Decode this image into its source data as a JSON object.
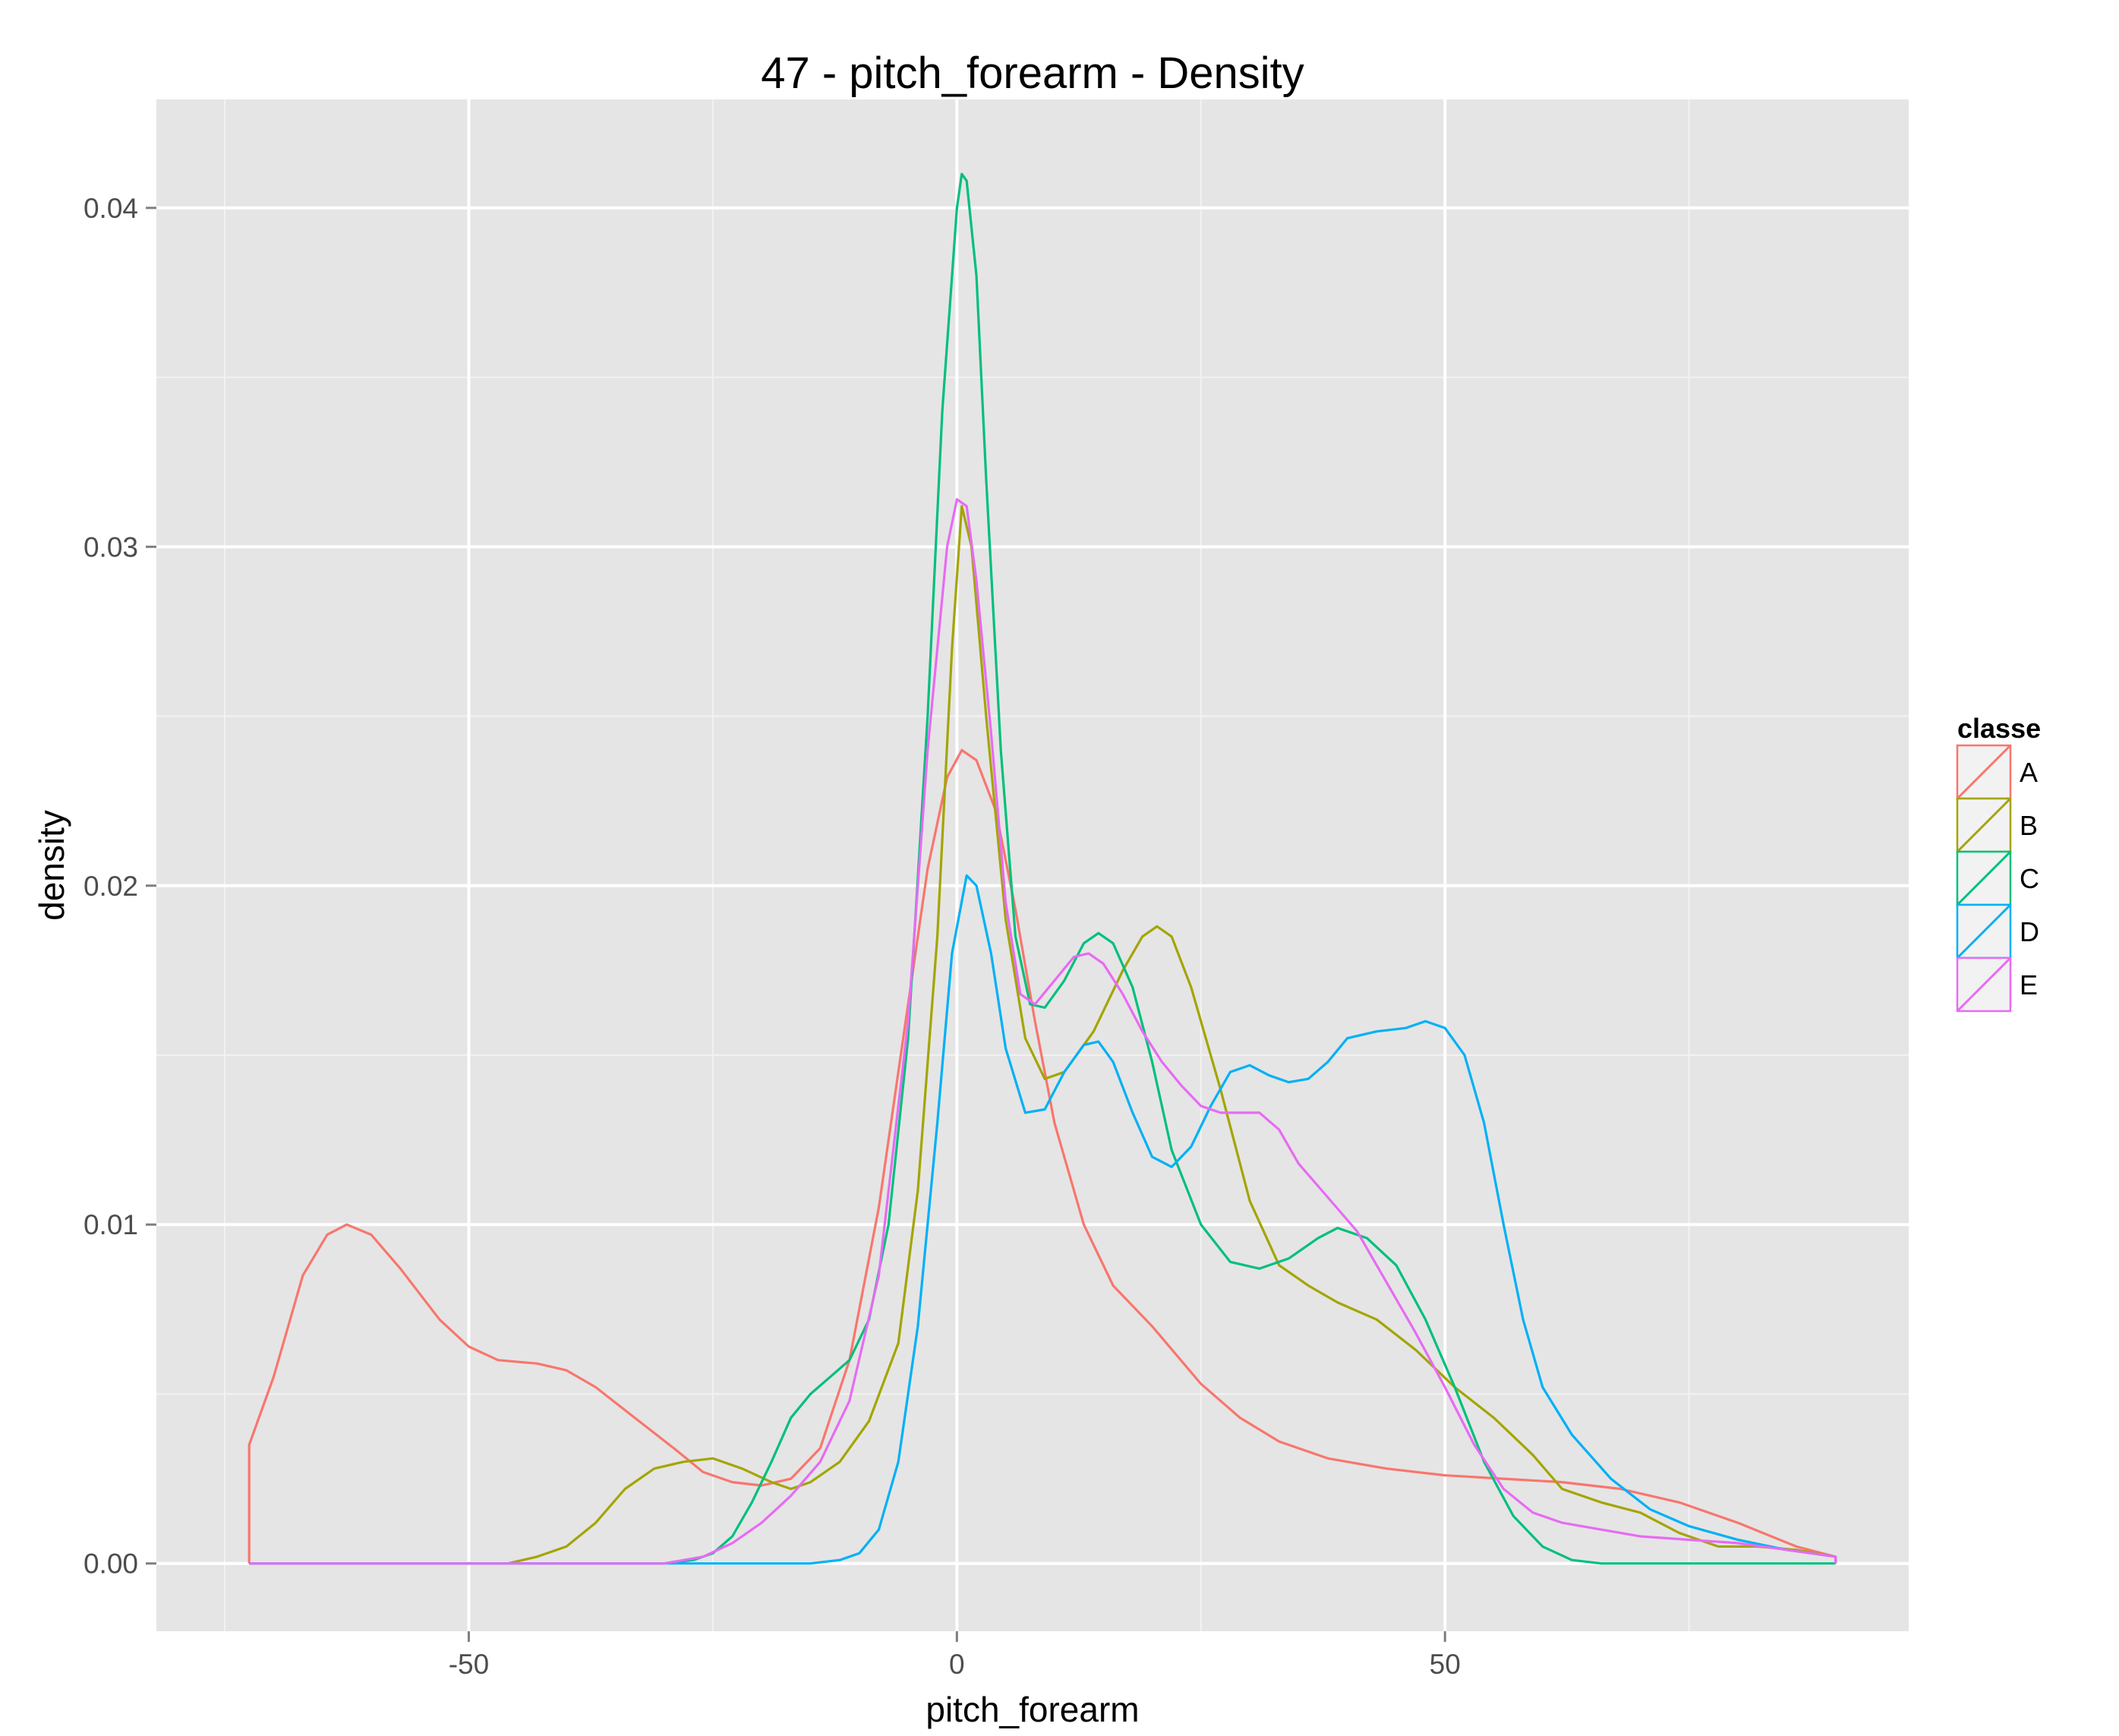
{
  "chart_data": {
    "type": "line",
    "title": "47 - pitch_forearm - Density",
    "xlabel": "pitch_forearm",
    "ylabel": "density",
    "xlim": [
      -82,
      97.5
    ],
    "ylim": [
      -0.002,
      0.0432
    ],
    "x_ticks": [
      -50,
      0,
      50
    ],
    "x_tick_labels": [
      "-50",
      "0",
      "50"
    ],
    "y_ticks": [
      0.0,
      0.01,
      0.02,
      0.03,
      0.04
    ],
    "y_tick_labels": [
      "0.00",
      "0.01",
      "0.02",
      "0.03",
      "0.04"
    ],
    "grid": true,
    "legend": {
      "title": "classe",
      "position": "right"
    },
    "series": [
      {
        "name": "A",
        "color": "#F8766D",
        "points": [
          [
            -72.5,
            0
          ],
          [
            -72.5,
            0.0035
          ],
          [
            -70,
            0.0055
          ],
          [
            -67,
            0.0085
          ],
          [
            -64.5,
            0.0097
          ],
          [
            -62.5,
            0.01
          ],
          [
            -60,
            0.0097
          ],
          [
            -57,
            0.0087
          ],
          [
            -53,
            0.0072
          ],
          [
            -50,
            0.0064
          ],
          [
            -47,
            0.006
          ],
          [
            -43,
            0.0059
          ],
          [
            -40,
            0.0057
          ],
          [
            -37,
            0.0052
          ],
          [
            -33,
            0.0043
          ],
          [
            -29,
            0.0034
          ],
          [
            -26,
            0.0027
          ],
          [
            -23,
            0.0024
          ],
          [
            -20,
            0.0023
          ],
          [
            -17,
            0.0025
          ],
          [
            -14,
            0.0034
          ],
          [
            -11,
            0.006
          ],
          [
            -8,
            0.0105
          ],
          [
            -5,
            0.0165
          ],
          [
            -3,
            0.0205
          ],
          [
            -1,
            0.0232
          ],
          [
            0.5,
            0.024
          ],
          [
            2,
            0.0237
          ],
          [
            4,
            0.0222
          ],
          [
            6,
            0.0193
          ],
          [
            8,
            0.016
          ],
          [
            10,
            0.013
          ],
          [
            13,
            0.01
          ],
          [
            16,
            0.0082
          ],
          [
            20,
            0.007
          ],
          [
            25,
            0.0053
          ],
          [
            29,
            0.0043
          ],
          [
            33,
            0.0036
          ],
          [
            38,
            0.0031
          ],
          [
            44,
            0.0028
          ],
          [
            50,
            0.0026
          ],
          [
            56,
            0.0025
          ],
          [
            62,
            0.0024
          ],
          [
            68,
            0.0022
          ],
          [
            74,
            0.0018
          ],
          [
            80,
            0.0012
          ],
          [
            86,
            0.0005
          ],
          [
            90,
            0.0002
          ],
          [
            90,
            0
          ]
        ]
      },
      {
        "name": "B",
        "color": "#A3A500",
        "points": [
          [
            -72.5,
            0
          ],
          [
            -46,
            0
          ],
          [
            -43,
            0.0002
          ],
          [
            -40,
            0.0005
          ],
          [
            -37,
            0.0012
          ],
          [
            -34,
            0.0022
          ],
          [
            -31,
            0.0028
          ],
          [
            -28,
            0.003
          ],
          [
            -25,
            0.0031
          ],
          [
            -22,
            0.0028
          ],
          [
            -19,
            0.0024
          ],
          [
            -17,
            0.0022
          ],
          [
            -15,
            0.0024
          ],
          [
            -12,
            0.003
          ],
          [
            -9,
            0.0042
          ],
          [
            -6,
            0.0065
          ],
          [
            -4,
            0.011
          ],
          [
            -2,
            0.0185
          ],
          [
            -0.5,
            0.027
          ],
          [
            0.5,
            0.0312
          ],
          [
            1.5,
            0.03
          ],
          [
            3,
            0.025
          ],
          [
            5,
            0.019
          ],
          [
            7,
            0.0155
          ],
          [
            9,
            0.0143
          ],
          [
            11,
            0.0145
          ],
          [
            14,
            0.0157
          ],
          [
            17,
            0.0175
          ],
          [
            19,
            0.0185
          ],
          [
            20.5,
            0.0188
          ],
          [
            22,
            0.0185
          ],
          [
            24,
            0.017
          ],
          [
            27,
            0.014
          ],
          [
            30,
            0.0107
          ],
          [
            33,
            0.0088
          ],
          [
            36,
            0.0082
          ],
          [
            39,
            0.0077
          ],
          [
            43,
            0.0072
          ],
          [
            47,
            0.0063
          ],
          [
            51,
            0.0052
          ],
          [
            55,
            0.0043
          ],
          [
            59,
            0.0032
          ],
          [
            62,
            0.0022
          ],
          [
            66,
            0.0018
          ],
          [
            70,
            0.0015
          ],
          [
            74,
            0.0009
          ],
          [
            78,
            0.0005
          ],
          [
            82,
            0.0005
          ],
          [
            86,
            0.0004
          ],
          [
            90,
            0.0002
          ],
          [
            90,
            0
          ]
        ]
      },
      {
        "name": "C",
        "color": "#00BF7D",
        "points": [
          [
            -72.5,
            0
          ],
          [
            -30,
            0
          ],
          [
            -27,
            0.0001
          ],
          [
            -25,
            0.0003
          ],
          [
            -23,
            0.0008
          ],
          [
            -21,
            0.0018
          ],
          [
            -19,
            0.003
          ],
          [
            -17,
            0.0043
          ],
          [
            -15,
            0.005
          ],
          [
            -13,
            0.0055
          ],
          [
            -11,
            0.006
          ],
          [
            -9,
            0.0072
          ],
          [
            -7,
            0.01
          ],
          [
            -5,
            0.0155
          ],
          [
            -3,
            0.025
          ],
          [
            -1.5,
            0.034
          ],
          [
            0,
            0.04
          ],
          [
            0.5,
            0.041
          ],
          [
            1,
            0.0408
          ],
          [
            2,
            0.038
          ],
          [
            3,
            0.032
          ],
          [
            4.5,
            0.024
          ],
          [
            6,
            0.0185
          ],
          [
            7.5,
            0.0165
          ],
          [
            9,
            0.0164
          ],
          [
            11,
            0.0172
          ],
          [
            13,
            0.0183
          ],
          [
            14.5,
            0.0186
          ],
          [
            16,
            0.0183
          ],
          [
            18,
            0.017
          ],
          [
            20,
            0.0148
          ],
          [
            22,
            0.0122
          ],
          [
            25,
            0.01
          ],
          [
            28,
            0.0089
          ],
          [
            31,
            0.0087
          ],
          [
            34,
            0.009
          ],
          [
            37,
            0.0096
          ],
          [
            39,
            0.0099
          ],
          [
            42,
            0.0096
          ],
          [
            45,
            0.0088
          ],
          [
            48,
            0.0072
          ],
          [
            51,
            0.0052
          ],
          [
            54,
            0.003
          ],
          [
            57,
            0.0014
          ],
          [
            60,
            0.0005
          ],
          [
            63,
            0.0001
          ],
          [
            66,
            0
          ],
          [
            90,
            0
          ]
        ]
      },
      {
        "name": "D",
        "color": "#00B0F6",
        "points": [
          [
            -72.5,
            0
          ],
          [
            -15,
            0
          ],
          [
            -12,
            0.0001
          ],
          [
            -10,
            0.0003
          ],
          [
            -8,
            0.001
          ],
          [
            -6,
            0.003
          ],
          [
            -4,
            0.007
          ],
          [
            -2,
            0.013
          ],
          [
            -0.5,
            0.018
          ],
          [
            1,
            0.0203
          ],
          [
            2,
            0.02
          ],
          [
            3.5,
            0.018
          ],
          [
            5,
            0.0152
          ],
          [
            7,
            0.0133
          ],
          [
            9,
            0.0134
          ],
          [
            11,
            0.0145
          ],
          [
            13,
            0.0153
          ],
          [
            14.5,
            0.0154
          ],
          [
            16,
            0.0148
          ],
          [
            18,
            0.0133
          ],
          [
            20,
            0.012
          ],
          [
            22,
            0.0117
          ],
          [
            24,
            0.0123
          ],
          [
            26,
            0.0135
          ],
          [
            28,
            0.0145
          ],
          [
            30,
            0.0147
          ],
          [
            32,
            0.0144
          ],
          [
            34,
            0.0142
          ],
          [
            36,
            0.0143
          ],
          [
            38,
            0.0148
          ],
          [
            40,
            0.0155
          ],
          [
            43,
            0.0157
          ],
          [
            46,
            0.0158
          ],
          [
            48,
            0.016
          ],
          [
            50,
            0.0158
          ],
          [
            52,
            0.015
          ],
          [
            54,
            0.013
          ],
          [
            56,
            0.01
          ],
          [
            58,
            0.0072
          ],
          [
            60,
            0.0052
          ],
          [
            63,
            0.0038
          ],
          [
            67,
            0.0025
          ],
          [
            71,
            0.0016
          ],
          [
            75,
            0.0011
          ],
          [
            80,
            0.0007
          ],
          [
            85,
            0.0004
          ],
          [
            90,
            0.0002
          ],
          [
            90,
            0
          ]
        ]
      },
      {
        "name": "E",
        "color": "#E76BF3",
        "points": [
          [
            -72.5,
            0
          ],
          [
            -30,
            0
          ],
          [
            -26,
            0.0002
          ],
          [
            -23,
            0.0006
          ],
          [
            -20,
            0.0012
          ],
          [
            -17,
            0.002
          ],
          [
            -14,
            0.003
          ],
          [
            -11,
            0.0048
          ],
          [
            -8,
            0.0085
          ],
          [
            -5,
            0.016
          ],
          [
            -3,
            0.024
          ],
          [
            -1,
            0.03
          ],
          [
            0,
            0.0314
          ],
          [
            1,
            0.0312
          ],
          [
            2,
            0.029
          ],
          [
            3.5,
            0.0245
          ],
          [
            5,
            0.0195
          ],
          [
            6.5,
            0.0168
          ],
          [
            8,
            0.0165
          ],
          [
            10,
            0.0172
          ],
          [
            12,
            0.0179
          ],
          [
            13.5,
            0.018
          ],
          [
            15,
            0.0177
          ],
          [
            17,
            0.0168
          ],
          [
            19,
            0.0157
          ],
          [
            21,
            0.0148
          ],
          [
            23,
            0.0141
          ],
          [
            25,
            0.0135
          ],
          [
            27,
            0.0133
          ],
          [
            29,
            0.0133
          ],
          [
            31,
            0.0133
          ],
          [
            33,
            0.0128
          ],
          [
            35,
            0.0118
          ],
          [
            38,
            0.0108
          ],
          [
            41,
            0.0098
          ],
          [
            44,
            0.0083
          ],
          [
            47,
            0.0068
          ],
          [
            50,
            0.0052
          ],
          [
            53,
            0.0035
          ],
          [
            56,
            0.0022
          ],
          [
            59,
            0.0015
          ],
          [
            62,
            0.0012
          ],
          [
            66,
            0.001
          ],
          [
            70,
            0.0008
          ],
          [
            75,
            0.0007
          ],
          [
            80,
            0.0006
          ],
          [
            85,
            0.0004
          ],
          [
            90,
            0.0002
          ],
          [
            90,
            0
          ]
        ]
      }
    ]
  }
}
